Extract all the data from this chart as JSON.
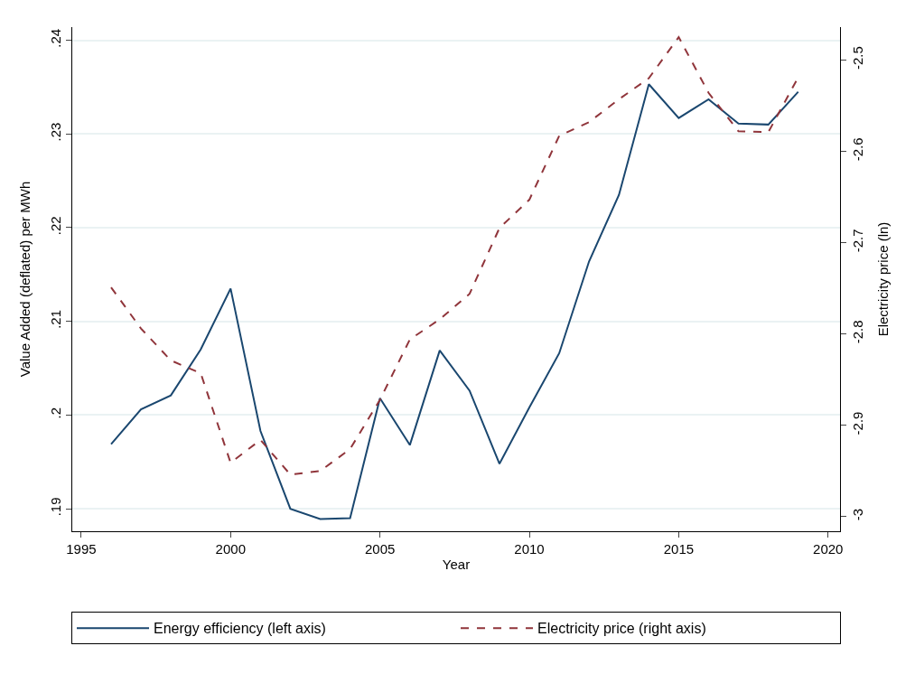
{
  "chart_data": {
    "type": "line",
    "xlabel": "Year",
    "ylabel": "Value Added (deflated) per MWh",
    "y2label": "Electricity price (ln)",
    "x": [
      1996,
      1997,
      1998,
      1999,
      2000,
      2001,
      2002,
      2003,
      2004,
      2005,
      2006,
      2007,
      2008,
      2009,
      2010,
      2011,
      2012,
      2013,
      2014,
      2015,
      2016,
      2017,
      2018,
      2019
    ],
    "series": [
      {
        "name": "Energy efficiency (left axis)",
        "color": "#1a476f",
        "line_style": "solid",
        "values": [
          0.1969,
          0.2006,
          0.2021,
          0.207,
          0.2135,
          0.1983,
          0.19,
          0.1889,
          0.189,
          0.2018,
          0.1968,
          0.2069,
          0.2026,
          0.1948,
          0.2008,
          0.2066,
          0.2164,
          0.2235,
          0.2353,
          0.2317,
          0.2337,
          0.2311,
          0.231,
          0.2345
        ]
      },
      {
        "name": "Electricity price (right axis)",
        "color": "#90353b",
        "line_style": "dashed",
        "axis": "y2",
        "values": [
          -2.749,
          -2.794,
          -2.829,
          -2.843,
          -2.941,
          -2.916,
          -2.954,
          -2.95,
          -2.926,
          -2.872,
          -2.806,
          -2.784,
          -2.756,
          -2.684,
          -2.653,
          -2.583,
          -2.568,
          -2.543,
          -2.52,
          -2.475,
          -2.536,
          -2.578,
          -2.579,
          -2.519
        ]
      }
    ],
    "xlim": [
      1994.7,
      2020.4
    ],
    "xticks": [
      1995,
      2000,
      2005,
      2010,
      2015,
      2020
    ],
    "ylim": [
      0.1876,
      0.2414
    ],
    "yticks": [
      {
        "value": 0.19,
        "label": ".19"
      },
      {
        "value": 0.2,
        "label": ".2"
      },
      {
        "value": 0.21,
        "label": ".21"
      },
      {
        "value": 0.22,
        "label": ".22"
      },
      {
        "value": 0.23,
        "label": ".23"
      },
      {
        "value": 0.24,
        "label": ".24"
      }
    ],
    "y2lim": [
      -3.016,
      -2.464
    ],
    "y2ticks": [
      -3,
      -2.9,
      -2.8,
      -2.7,
      -2.6,
      -2.5
    ],
    "grid": "y",
    "legend": "bottom",
    "marker": "none"
  }
}
